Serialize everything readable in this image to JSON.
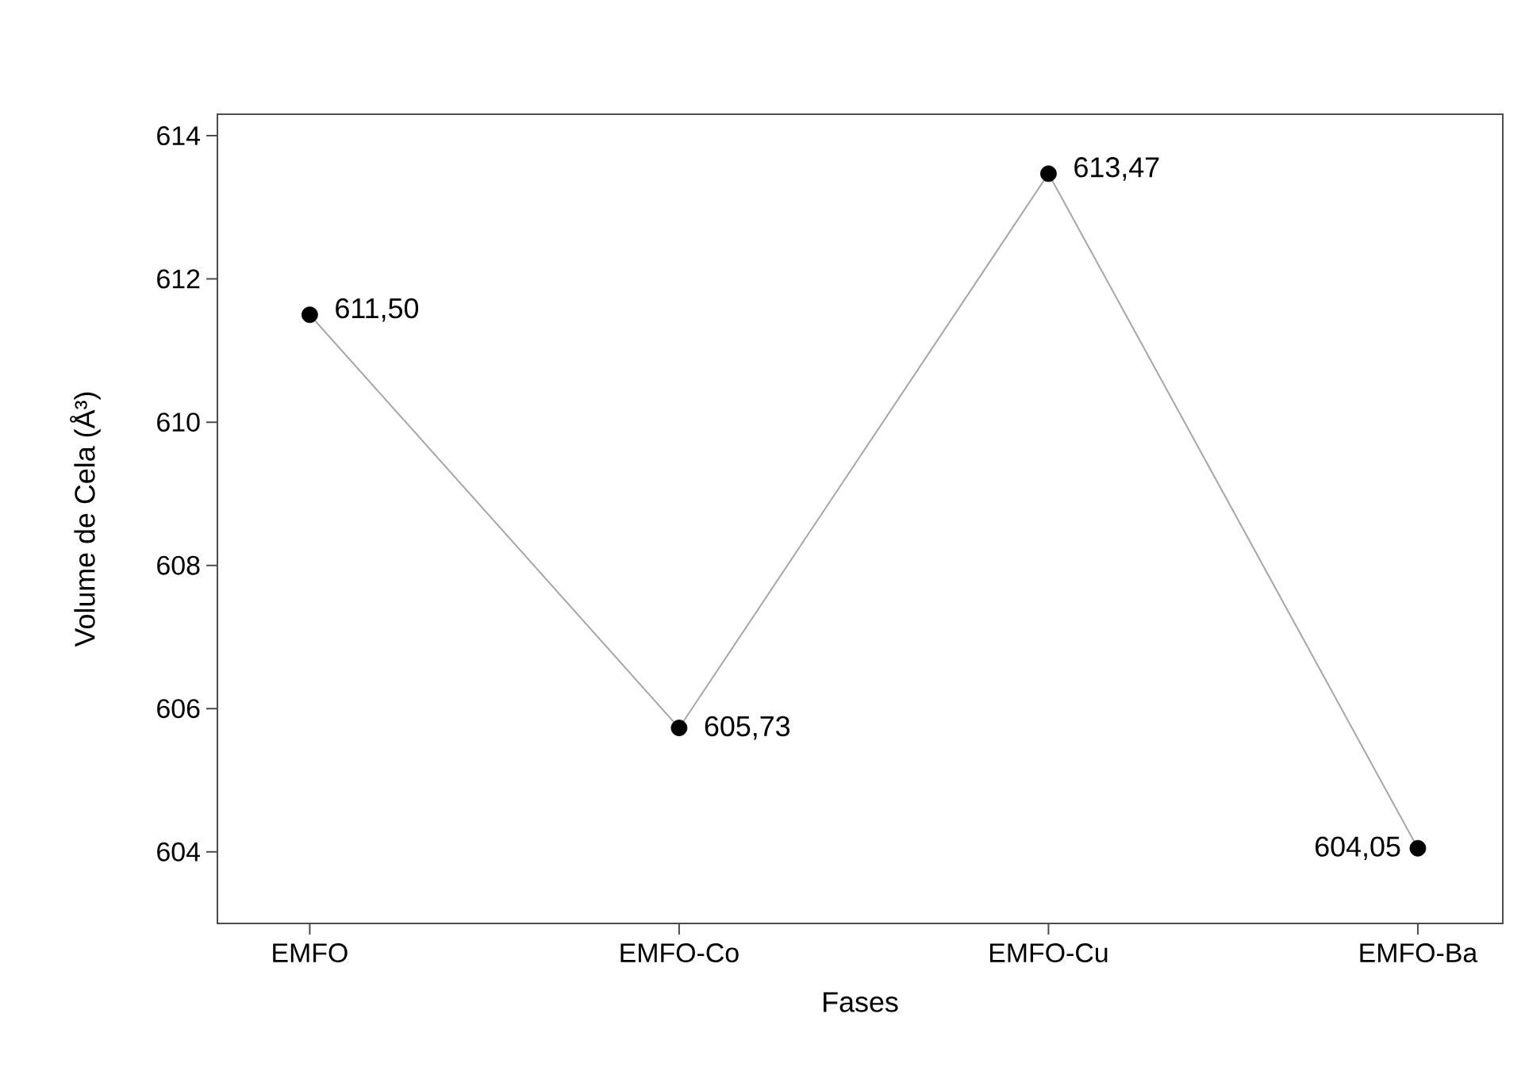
{
  "chart_data": {
    "type": "line",
    "xlabel": "Fases",
    "ylabel": "Volume de Cela (Å³)",
    "categories": [
      "EMFO",
      "EMFO-Co",
      "EMFO-Cu",
      "EMFO-Ba"
    ],
    "series": [
      {
        "color": "#a6a6a6",
        "colors": [
          "#000000",
          "#000000",
          "#000000",
          "#000000"
        ],
        "values": [
          611.5,
          605.73,
          613.47,
          604.05
        ],
        "value_labels": [
          "611,50",
          "605,73",
          "613,47",
          "604,05"
        ]
      }
    ],
    "ylim": [
      603,
      614.3
    ],
    "yticks": [
      604,
      606,
      608,
      610,
      612,
      614
    ],
    "marker": "circle",
    "line_style": "solid",
    "grid": false
  }
}
